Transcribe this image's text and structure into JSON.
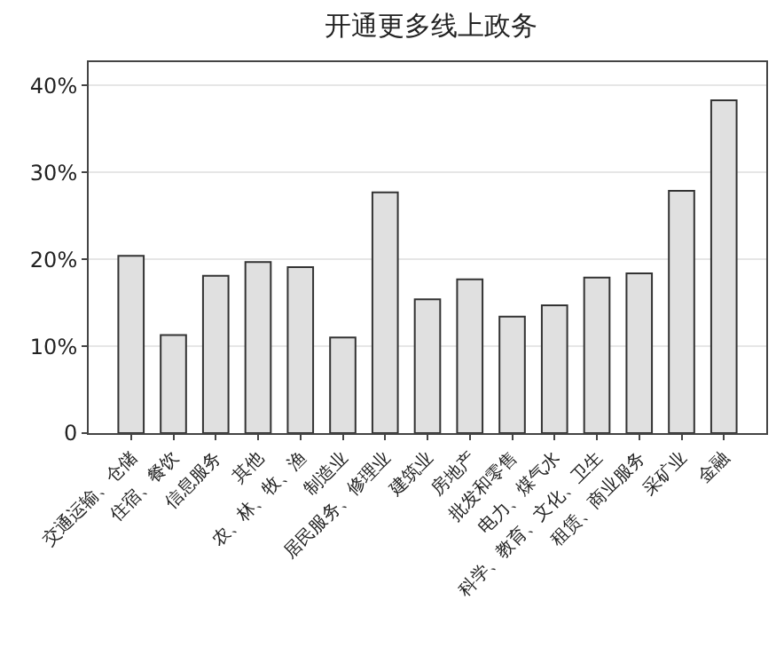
{
  "chart_data": {
    "type": "bar",
    "title": "开通更多线上政务",
    "categories": [
      "交通运输、仓储",
      "住宿、餐饮",
      "信息服务",
      "其他",
      "农、林、牧、渔",
      "制造业",
      "居民服务、修理业",
      "建筑业",
      "房地产",
      "批发和零售",
      "电力、煤气水",
      "科学、教育、文化、卫生",
      "租赁、商业服务",
      "采矿业",
      "金融"
    ],
    "values": [
      20.4,
      11.3,
      18.1,
      19.7,
      19.1,
      11.0,
      27.7,
      15.4,
      17.7,
      13.4,
      14.7,
      17.9,
      18.4,
      27.9,
      38.3
    ],
    "color": "#e0e0e0",
    "ylim": [
      0,
      42.7
    ],
    "yticks": [
      {
        "value": 0,
        "label": "0"
      },
      {
        "value": 10,
        "label": "10%"
      },
      {
        "value": 20,
        "label": "20%"
      },
      {
        "value": 30,
        "label": "30%"
      },
      {
        "value": 40,
        "label": "40%"
      }
    ],
    "grid": "y"
  }
}
